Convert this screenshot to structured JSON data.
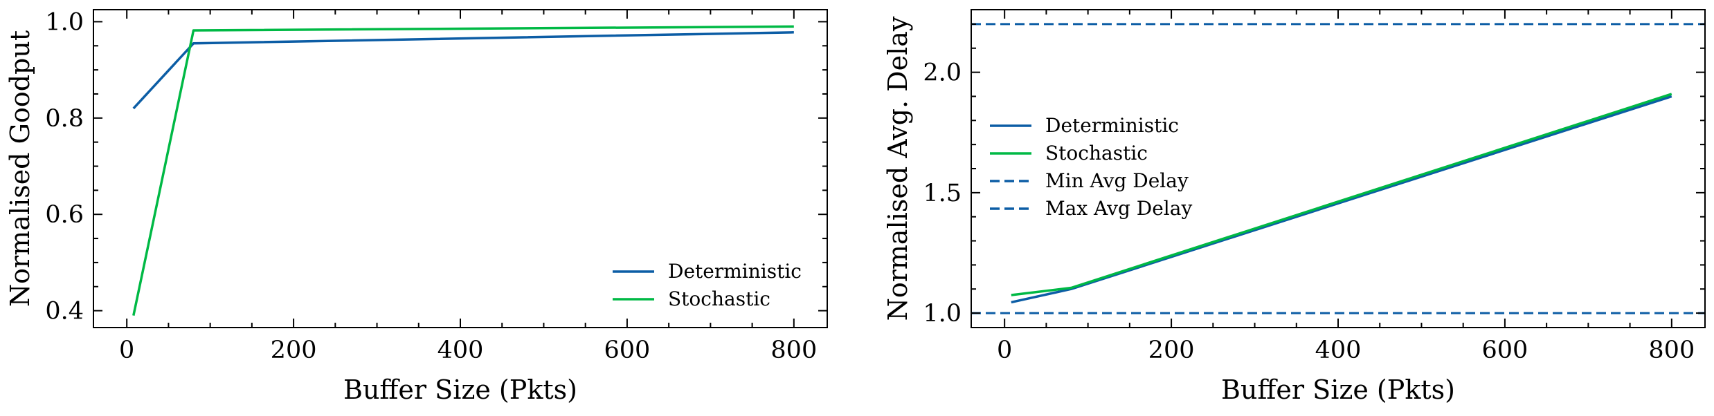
{
  "chart_data": [
    {
      "type": "line",
      "xlabel": "Buffer Size (Pkts)",
      "ylabel": "Normalised Goodput",
      "xlim": [
        -40,
        840
      ],
      "ylim": [
        0.365,
        1.025
      ],
      "xticks": [
        0,
        200,
        400,
        600,
        800
      ],
      "xtick_labels": [
        "0",
        "200",
        "400",
        "600",
        "800"
      ],
      "yticks": [
        0.4,
        0.6,
        0.8,
        1.0
      ],
      "ytick_labels": [
        "0.4",
        "0.6",
        "0.8",
        "1.0"
      ],
      "legend_position": "lower-right",
      "grid": false,
      "series": [
        {
          "name": "Deterministic",
          "color": "#0C5DA5",
          "dash": false,
          "x": [
            8,
            80,
            800
          ],
          "y": [
            0.82,
            0.955,
            0.978
          ]
        },
        {
          "name": "Stochastic",
          "color": "#00B945",
          "dash": false,
          "x": [
            8,
            80,
            800
          ],
          "y": [
            0.39,
            0.982,
            0.99
          ]
        }
      ]
    },
    {
      "type": "line",
      "xlabel": "Buffer Size (Pkts)",
      "ylabel": "Normalised Avg. Delay",
      "xlim": [
        -40,
        840
      ],
      "ylim": [
        0.94,
        2.26
      ],
      "xticks": [
        0,
        200,
        400,
        600,
        800
      ],
      "xtick_labels": [
        "0",
        "200",
        "400",
        "600",
        "800"
      ],
      "yticks": [
        1.0,
        1.5,
        2.0
      ],
      "ytick_labels": [
        "1.0",
        "1.5",
        "2.0"
      ],
      "legend_position": "upper-left",
      "grid": false,
      "series": [
        {
          "name": "Deterministic",
          "color": "#0C5DA5",
          "dash": false,
          "x": [
            8,
            80,
            800
          ],
          "y": [
            1.045,
            1.1,
            1.9
          ]
        },
        {
          "name": "Stochastic",
          "color": "#00B945",
          "dash": false,
          "x": [
            8,
            80,
            800
          ],
          "y": [
            1.075,
            1.105,
            1.91
          ]
        },
        {
          "name": "Min Avg Delay",
          "color": "#0C5DA5",
          "dash": true,
          "hline": 1.0
        },
        {
          "name": "Max Avg Delay",
          "color": "#0C5DA5",
          "dash": true,
          "hline": 2.2
        }
      ]
    }
  ]
}
